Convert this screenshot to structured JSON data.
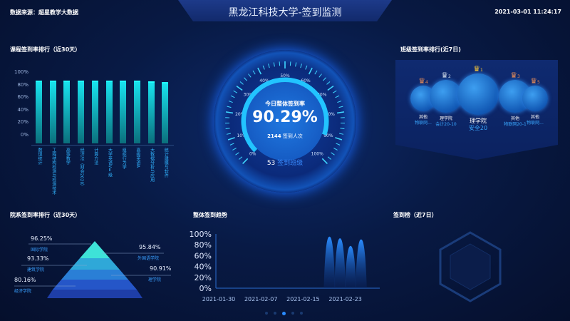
{
  "header": {
    "title": "黑龙江科技大学-签到监测",
    "source": "数据来源：超星教学大数据",
    "datetime": "2021-03-01 11:24:17"
  },
  "course_rank": {
    "title": "课程签到率排行（近30天）",
    "chart_data": {
      "type": "bar",
      "yticks": [
        "100%",
        "80%",
        "60%",
        "40%",
        "20%",
        "0%"
      ],
      "ylim": [
        0,
        100
      ],
      "categories": [
        "数理统计",
        "工程结构检测与检测技术",
        "高等数学",
        "经济法（财会2020）",
        "计算方法",
        "大学英语VⅡ级",
        "组织行为学",
        "高级英语A",
        "大数据分析与应用",
        "统计建模与软件"
      ],
      "values": [
        100,
        100,
        100,
        100,
        100,
        100,
        100,
        100,
        99,
        98
      ]
    }
  },
  "gauge": {
    "label": "今日整体签到率",
    "value": "90.29%",
    "percent": 90.29,
    "count": "2144",
    "count_label": "签到人次",
    "classes": "53",
    "classes_label": "签到班级",
    "ticks": [
      "0%",
      "10%",
      "20%",
      "30%",
      "40%",
      "50%",
      "60%",
      "70%",
      "80%",
      "90%",
      "100%"
    ]
  },
  "class_rank": {
    "title": "班级签到率排行(近7日)",
    "items": [
      {
        "rank": "4",
        "college": "其他",
        "cls": "物联网..."
      },
      {
        "rank": "2",
        "college": "理学院",
        "cls": "会计20-10"
      },
      {
        "rank": "1",
        "college": "理学院",
        "cls": "安全20"
      },
      {
        "rank": "3",
        "college": "其他",
        "cls": "物联网20-1"
      },
      {
        "rank": "5",
        "college": "其他",
        "cls": "物联网..."
      }
    ]
  },
  "college_rank": {
    "title": "院系签到率排行（近30天）",
    "items": [
      {
        "value": "96.25%",
        "name": "国际学院"
      },
      {
        "value": "95.84%",
        "name": "外国语学院"
      },
      {
        "value": "93.33%",
        "name": "建筑学院"
      },
      {
        "value": "90.91%",
        "name": "理学院"
      },
      {
        "value": "80.16%",
        "name": "经济学院"
      }
    ]
  },
  "trend": {
    "title": "整体签到趋势",
    "chart_data": {
      "type": "area",
      "yticks": [
        "100%",
        "80%",
        "60%",
        "40%",
        "20%",
        "0%"
      ],
      "ylim": [
        0,
        100
      ],
      "xticks": [
        "2021-01-30",
        "2021-02-07",
        "2021-02-15",
        "2021-02-23"
      ],
      "peaks": [
        {
          "date": "2021-02-20",
          "value": 95
        },
        {
          "date": "2021-02-22",
          "value": 92
        },
        {
          "date": "2021-02-24",
          "value": 78
        },
        {
          "date": "2021-02-26",
          "value": 90
        }
      ]
    }
  },
  "leaderboard": {
    "title": "签到榜（近7日）"
  },
  "colors": {
    "accent": "#18e2ee",
    "gold": "#f3c33a",
    "silver": "#c9d6e6",
    "bronze": "#e08a5a"
  }
}
